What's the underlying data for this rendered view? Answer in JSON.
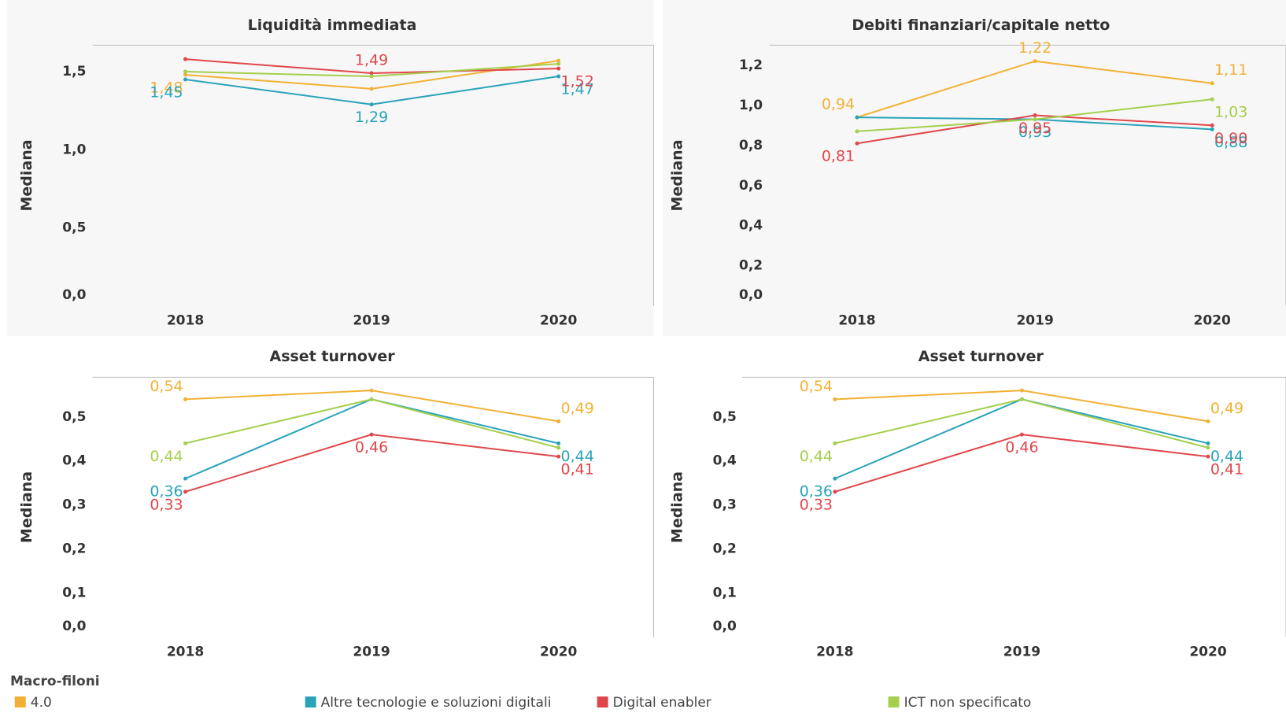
{
  "chart_data": [
    {
      "type": "line",
      "title": "Liquidità immediata",
      "y_label": "Mediana",
      "categories": [
        "2018",
        "2019",
        "2020"
      ],
      "ylim": [
        0,
        1.67
      ],
      "yticks": [
        {
          "value": 0,
          "label": "0,0"
        },
        {
          "value": 0.5,
          "label": "0,5"
        },
        {
          "value": 1,
          "label": "1,0"
        },
        {
          "value": 1.5,
          "label": "1,5"
        }
      ],
      "series": [
        {
          "name": "4.0",
          "color": "#f2b134",
          "values": [
            1.48,
            1.39,
            1.57
          ],
          "value_labels": [
            "1,48",
            null,
            null
          ]
        },
        {
          "name": "Altre tecnologie e soluzioni digitali",
          "color": "#2aa3b9",
          "values": [
            1.45,
            1.29,
            1.47
          ],
          "value_labels": [
            "1,45",
            "1,29",
            "1,47"
          ]
        },
        {
          "name": "Digital enabler",
          "color": "#e0474c",
          "values": [
            1.58,
            1.49,
            1.52
          ],
          "value_labels": [
            null,
            "1,49",
            "1,52"
          ]
        },
        {
          "name": "ICT non specificato",
          "color": "#a5cf4c",
          "values": [
            1.5,
            1.47,
            1.55
          ],
          "value_labels": [
            null,
            null,
            null
          ]
        }
      ]
    },
    {
      "type": "line",
      "title": "Debiti finanziari/capitale netto",
      "y_label": "Mediana",
      "categories": [
        "2018",
        "2019",
        "2020"
      ],
      "ylim": [
        0,
        1.3
      ],
      "yticks": [
        {
          "value": 0,
          "label": "0,0"
        },
        {
          "value": 0.2,
          "label": "0,2"
        },
        {
          "value": 0.4,
          "label": "0,4"
        },
        {
          "value": 0.6,
          "label": "0,6"
        },
        {
          "value": 0.8,
          "label": "0,8"
        },
        {
          "value": 1,
          "label": "1,0"
        },
        {
          "value": 1.2,
          "label": "1,2"
        }
      ],
      "series": [
        {
          "name": "4.0",
          "color": "#f2b134",
          "values": [
            0.94,
            1.22,
            1.11
          ],
          "value_labels": [
            "0,94",
            "1,22",
            "1,11"
          ]
        },
        {
          "name": "Altre tecnologie e soluzioni digitali",
          "color": "#2aa3b9",
          "values": [
            0.94,
            0.93,
            0.88
          ],
          "value_labels": [
            null,
            "0,93",
            "0,88"
          ]
        },
        {
          "name": "Digital enabler",
          "color": "#e0474c",
          "values": [
            0.81,
            0.95,
            0.9
          ],
          "value_labels": [
            "0,81",
            "0,95",
            "0,90"
          ]
        },
        {
          "name": "ICT non specificato",
          "color": "#a5cf4c",
          "values": [
            0.87,
            0.93,
            1.03
          ],
          "value_labels": [
            null,
            null,
            "1,03"
          ]
        }
      ]
    },
    {
      "type": "line",
      "title": "Asset turnover",
      "y_label": "Mediana",
      "categories": [
        "2018",
        "2019",
        "2020"
      ],
      "ylim": [
        0,
        0.59
      ],
      "yticks": [
        {
          "value": 0,
          "label": "0,0"
        },
        {
          "value": 0.1,
          "label": "0,1"
        },
        {
          "value": 0.2,
          "label": "0,2"
        },
        {
          "value": 0.3,
          "label": "0,3"
        },
        {
          "value": 0.4,
          "label": "0,4"
        },
        {
          "value": 0.5,
          "label": "0,5"
        }
      ],
      "series": [
        {
          "name": "4.0",
          "color": "#f2b134",
          "values": [
            0.54,
            0.56,
            0.49
          ],
          "value_labels": [
            "0,54",
            null,
            "0,49"
          ]
        },
        {
          "name": "Altre tecnologie e soluzioni digitali",
          "color": "#2aa3b9",
          "values": [
            0.36,
            0.54,
            0.44
          ],
          "value_labels": [
            "0,36",
            null,
            "0,44"
          ]
        },
        {
          "name": "Digital enabler",
          "color": "#e0474c",
          "values": [
            0.33,
            0.46,
            0.41
          ],
          "value_labels": [
            "0,33",
            "0,46",
            "0,41"
          ]
        },
        {
          "name": "ICT non specificato",
          "color": "#a5cf4c",
          "values": [
            0.44,
            0.54,
            0.43
          ],
          "value_labels": [
            "0,44",
            null,
            null
          ]
        }
      ]
    },
    {
      "type": "line",
      "title": "Asset turnover",
      "y_label": "Mediana",
      "categories": [
        "2018",
        "2019",
        "2020"
      ],
      "ylim": [
        0,
        0.59
      ],
      "yticks": [
        {
          "value": 0,
          "label": "0,0"
        },
        {
          "value": 0.1,
          "label": "0,1"
        },
        {
          "value": 0.2,
          "label": "0,2"
        },
        {
          "value": 0.3,
          "label": "0,3"
        },
        {
          "value": 0.4,
          "label": "0,4"
        },
        {
          "value": 0.5,
          "label": "0,5"
        }
      ],
      "series": [
        {
          "name": "4.0",
          "color": "#f2b134",
          "values": [
            0.54,
            0.56,
            0.49
          ],
          "value_labels": [
            "0,54",
            null,
            "0,49"
          ]
        },
        {
          "name": "Altre tecnologie e soluzioni digitali",
          "color": "#2aa3b9",
          "values": [
            0.36,
            0.54,
            0.44
          ],
          "value_labels": [
            "0,36",
            null,
            "0,44"
          ]
        },
        {
          "name": "Digital enabler",
          "color": "#e0474c",
          "values": [
            0.33,
            0.46,
            0.41
          ],
          "value_labels": [
            "0,33",
            "0,46",
            "0,41"
          ]
        },
        {
          "name": "ICT non specificato",
          "color": "#a5cf4c",
          "values": [
            0.44,
            0.54,
            0.43
          ],
          "value_labels": [
            "0,44",
            null,
            null
          ]
        }
      ]
    }
  ],
  "legend": {
    "title": "Macro-filoni"
  }
}
